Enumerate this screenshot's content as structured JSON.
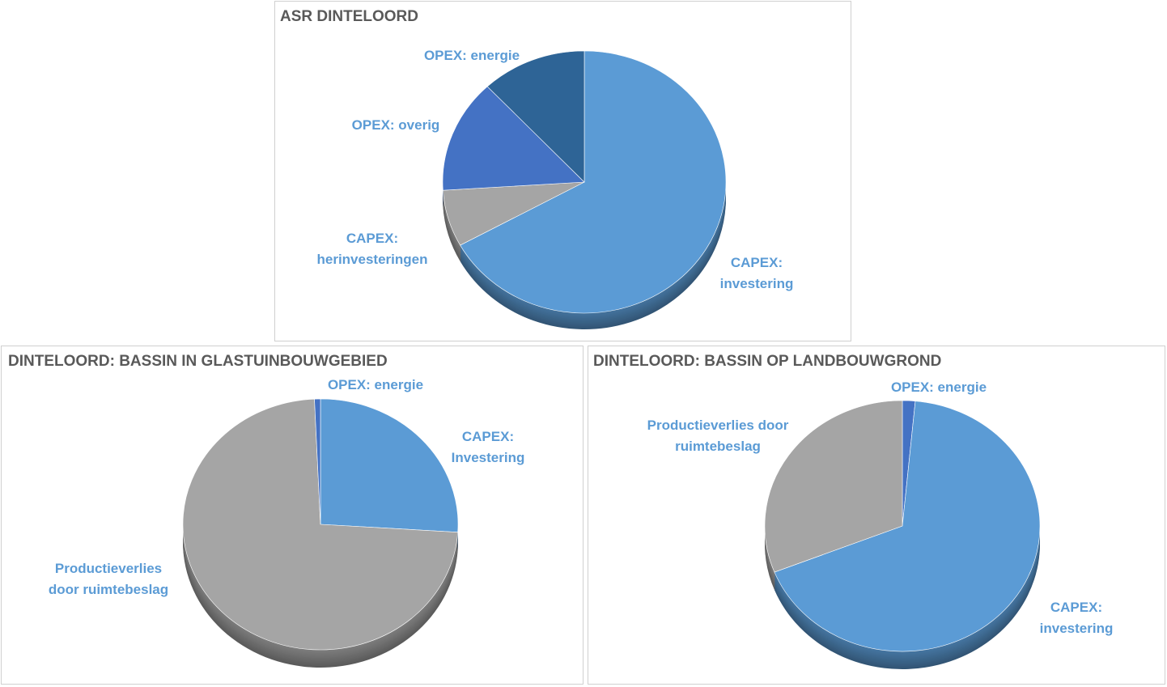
{
  "chart_data": [
    {
      "type": "pie",
      "title": "ASR DINTELOORD",
      "categories": [
        "CAPEX: investering",
        "CAPEX: herinvesteringen",
        "OPEX: overig",
        "OPEX: energie"
      ],
      "values": [
        67,
        7,
        14,
        12
      ],
      "colors": [
        "#5b9bd5",
        "#a5a5a5",
        "#4472c4",
        "#2e6496"
      ]
    },
    {
      "type": "pie",
      "title": "DINTELOORD: BASSIN IN GLASTUINBOUWGEBIED",
      "categories": [
        "CAPEX: Investering",
        "Productieverlies door ruimtebeslag",
        "OPEX: energie"
      ],
      "values": [
        26,
        73.3,
        0.7
      ],
      "colors": [
        "#5b9bd5",
        "#a5a5a5",
        "#4472c4"
      ]
    },
    {
      "type": "pie",
      "title": "DINTELOORD: BASSIN OP LANDBOUWGROND",
      "categories": [
        "OPEX: energie",
        "CAPEX: investering",
        "Productieverlies door ruimtebeslag"
      ],
      "values": [
        1.5,
        67.5,
        31
      ],
      "colors": [
        "#4472c4",
        "#5b9bd5",
        "#a5a5a5"
      ]
    }
  ]
}
